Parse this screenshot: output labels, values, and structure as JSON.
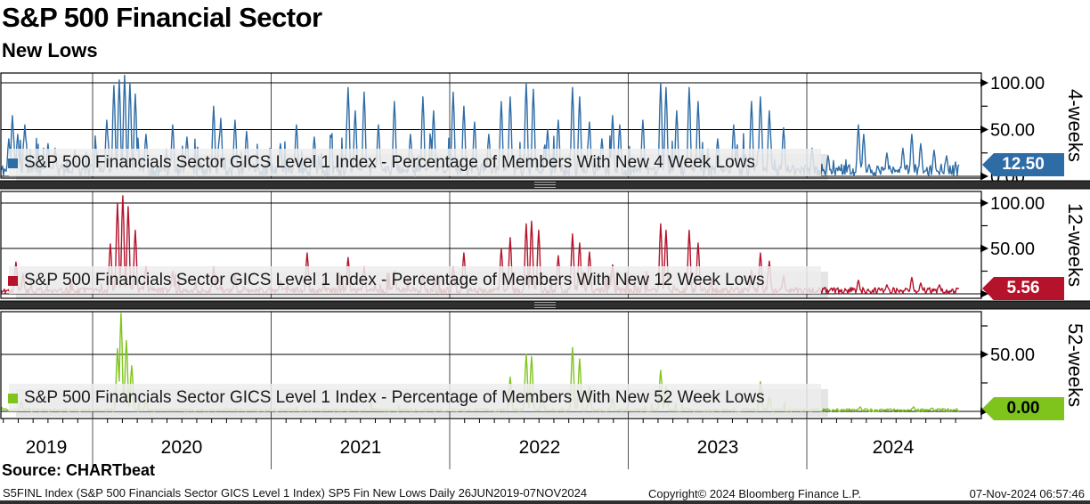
{
  "title": "S&P 500 Financial Sector",
  "subtitle": "New Lows",
  "source_label": "Source: CHARTbeat",
  "footer": {
    "left": "S5FINL Index (S&P 500 Financials Sector GICS Level 1 Index) SP5 Fin New Lows  Daily 26JUN2019-07NOV2024",
    "center": "Copyright© 2024 Bloomberg Finance L.P.",
    "right": "07-Nov-2024 06:57:46"
  },
  "x_axis": {
    "years": [
      "2019",
      "2020",
      "2021",
      "2022",
      "2023",
      "2024"
    ]
  },
  "colors": {
    "blue": "#2e6ca6",
    "red": "#b5122b",
    "green": "#7fc41d",
    "separator": "#2f2f2f",
    "legend_strip": "rgba(237,237,237,0.85)"
  },
  "chart_data": {
    "type": "line",
    "x_range": [
      2019.486,
      2024.852
    ],
    "x_tick_years": [
      2020,
      2021,
      2022,
      2023,
      2024
    ],
    "grid": true,
    "legend_position": "bottom-left-inside",
    "panels": [
      {
        "name": "4-weeks",
        "axis_title": "4-weeks",
        "legend": "S&P 500 Financials Sector GICS Level 1 Index - Percentage of Members With New 4 Week Lows",
        "color": "#2e6ca6",
        "badge_text_color": "#ffffff",
        "last_value": 12.5,
        "last_value_label": "12.50",
        "ylim": [
          0,
          110
        ],
        "ticks": [
          {
            "v": 100,
            "label": "100.00",
            "major": true
          },
          {
            "v": 75,
            "major": false
          },
          {
            "v": 50,
            "label": "50.00",
            "major": true
          },
          {
            "v": 25,
            "major": false
          },
          {
            "v": 0,
            "label": "0.00",
            "major": true
          }
        ],
        "seed": 11,
        "noise": {
          "small": 13,
          "med_p": 0.12,
          "med": 46,
          "med2_p": 0.07,
          "med2": 20,
          "switch": 2024.0
        },
        "spikes": [
          [
            2019.53,
            40
          ],
          [
            2019.55,
            65
          ],
          [
            2019.58,
            45
          ],
          [
            2019.62,
            55
          ],
          [
            2019.75,
            35
          ],
          [
            2019.79,
            30
          ],
          [
            2019.9,
            28
          ],
          [
            2020.02,
            30
          ],
          [
            2020.08,
            60
          ],
          [
            2020.12,
            97
          ],
          [
            2020.15,
            103
          ],
          [
            2020.18,
            108
          ],
          [
            2020.21,
            100
          ],
          [
            2020.24,
            88
          ],
          [
            2020.3,
            45
          ],
          [
            2020.45,
            55
          ],
          [
            2020.53,
            42
          ],
          [
            2020.68,
            75
          ],
          [
            2020.72,
            62
          ],
          [
            2020.8,
            60
          ],
          [
            2020.86,
            48
          ],
          [
            2021.05,
            35
          ],
          [
            2021.14,
            55
          ],
          [
            2021.24,
            42
          ],
          [
            2021.43,
            95
          ],
          [
            2021.47,
            70
          ],
          [
            2021.52,
            90
          ],
          [
            2021.6,
            55
          ],
          [
            2021.69,
            80
          ],
          [
            2021.78,
            45
          ],
          [
            2021.85,
            85
          ],
          [
            2021.91,
            70
          ],
          [
            2022.02,
            90
          ],
          [
            2022.08,
            75
          ],
          [
            2022.14,
            58
          ],
          [
            2022.22,
            45
          ],
          [
            2022.29,
            80
          ],
          [
            2022.34,
            85
          ],
          [
            2022.43,
            100
          ],
          [
            2022.47,
            93
          ],
          [
            2022.55,
            50
          ],
          [
            2022.61,
            60
          ],
          [
            2022.69,
            95
          ],
          [
            2022.73,
            85
          ],
          [
            2022.78,
            58
          ],
          [
            2022.85,
            40
          ],
          [
            2022.91,
            65
          ],
          [
            2022.95,
            55
          ],
          [
            2023.08,
            60
          ],
          [
            2023.18,
            100
          ],
          [
            2023.21,
            95
          ],
          [
            2023.27,
            70
          ],
          [
            2023.34,
            95
          ],
          [
            2023.39,
            80
          ],
          [
            2023.5,
            40
          ],
          [
            2023.59,
            55
          ],
          [
            2023.69,
            80
          ],
          [
            2023.74,
            85
          ],
          [
            2023.79,
            70
          ],
          [
            2023.87,
            52
          ],
          [
            2024.03,
            30
          ],
          [
            2024.12,
            22
          ],
          [
            2024.29,
            55
          ],
          [
            2024.32,
            45
          ],
          [
            2024.45,
            25
          ],
          [
            2024.54,
            30
          ],
          [
            2024.59,
            45
          ],
          [
            2024.64,
            35
          ],
          [
            2024.71,
            28
          ],
          [
            2024.78,
            22
          ]
        ]
      },
      {
        "name": "12-weeks",
        "axis_title": "12-weeks",
        "legend": "S&P 500 Financials Sector GICS Level 1 Index - Percentage of Members With New 12 Week Lows",
        "color": "#b5122b",
        "badge_text_color": "#ffffff",
        "last_value": 5.56,
        "last_value_label": "5.56",
        "ylim": [
          0,
          112
        ],
        "ticks": [
          {
            "v": 100,
            "label": "100.00",
            "major": true
          },
          {
            "v": 75,
            "major": false
          },
          {
            "v": 50,
            "label": "50.00",
            "major": true
          },
          {
            "v": 25,
            "major": false
          },
          {
            "v": 0,
            "label": "0.00",
            "major": true
          }
        ],
        "seed": 22,
        "noise": {
          "small": 7,
          "med_p": 0.07,
          "med": 25,
          "med2_p": 0.04,
          "med2": 10,
          "switch": 2024.0
        },
        "spikes": [
          [
            2019.57,
            35
          ],
          [
            2019.61,
            22
          ],
          [
            2020.1,
            55
          ],
          [
            2020.14,
            100
          ],
          [
            2020.17,
            108
          ],
          [
            2020.2,
            96
          ],
          [
            2020.24,
            70
          ],
          [
            2020.3,
            30
          ],
          [
            2020.45,
            25
          ],
          [
            2020.68,
            30
          ],
          [
            2020.8,
            20
          ],
          [
            2021.05,
            15
          ],
          [
            2021.2,
            45
          ],
          [
            2021.43,
            40
          ],
          [
            2021.52,
            30
          ],
          [
            2021.69,
            25
          ],
          [
            2021.85,
            22
          ],
          [
            2022.02,
            30
          ],
          [
            2022.08,
            45
          ],
          [
            2022.29,
            50
          ],
          [
            2022.34,
            62
          ],
          [
            2022.43,
            77
          ],
          [
            2022.46,
            80
          ],
          [
            2022.5,
            70
          ],
          [
            2022.61,
            42
          ],
          [
            2022.69,
            66
          ],
          [
            2022.73,
            56
          ],
          [
            2022.78,
            46
          ],
          [
            2022.91,
            32
          ],
          [
            2023.08,
            20
          ],
          [
            2023.18,
            77
          ],
          [
            2023.21,
            70
          ],
          [
            2023.34,
            70
          ],
          [
            2023.39,
            56
          ],
          [
            2023.69,
            26
          ],
          [
            2023.74,
            45
          ],
          [
            2023.79,
            36
          ],
          [
            2023.87,
            20
          ],
          [
            2024.29,
            15
          ],
          [
            2024.45,
            10
          ],
          [
            2024.59,
            18
          ],
          [
            2024.64,
            12
          ],
          [
            2024.74,
            10
          ]
        ]
      },
      {
        "name": "52-weeks",
        "axis_title": "52-weeks",
        "legend": "S&P 500 Financials Sector GICS Level 1 Index - Percentage of Members With New 52 Week Lows",
        "color": "#7fc41d",
        "badge_text_color": "#000000",
        "last_value": 0.0,
        "last_value_label": "0.00",
        "ylim": [
          0,
          87
        ],
        "ticks": [
          {
            "v": 75,
            "major": false
          },
          {
            "v": 50,
            "label": "50.00",
            "major": true
          },
          {
            "v": 25,
            "major": false
          },
          {
            "v": 0,
            "label": "0.00",
            "major": true
          }
        ],
        "seed": 33,
        "noise": {
          "small": 2.5,
          "med_p": 0.02,
          "med": 8,
          "med2_p": 0.01,
          "med2": 3,
          "switch": 2024.0
        },
        "spikes": [
          [
            2019.6,
            8
          ],
          [
            2020.14,
            55
          ],
          [
            2020.16,
            86
          ],
          [
            2020.19,
            62
          ],
          [
            2020.22,
            40
          ],
          [
            2020.3,
            10
          ],
          [
            2022.34,
            30
          ],
          [
            2022.43,
            50
          ],
          [
            2022.46,
            48
          ],
          [
            2022.52,
            16
          ],
          [
            2022.69,
            56
          ],
          [
            2022.73,
            46
          ],
          [
            2022.78,
            22
          ],
          [
            2022.91,
            12
          ],
          [
            2023.18,
            36
          ],
          [
            2023.21,
            22
          ],
          [
            2023.74,
            26
          ],
          [
            2023.79,
            13
          ],
          [
            2024.3,
            4
          ],
          [
            2024.6,
            4
          ],
          [
            2024.7,
            3
          ]
        ]
      }
    ]
  }
}
